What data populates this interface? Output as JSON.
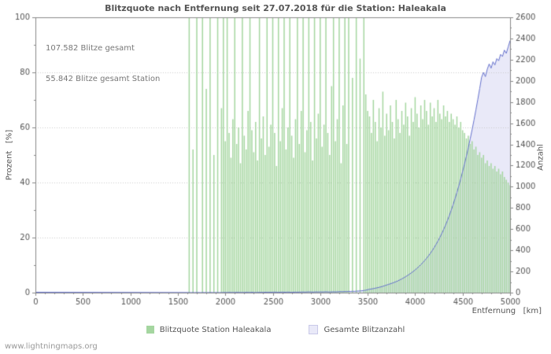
{
  "watermark": "www.lightningmaps.org",
  "chart_data": {
    "type": "mixed",
    "title": "Blitzquote nach Entfernung seit 27.07.2018 für die Station: Haleakala",
    "annotations": [
      "107.582 Blitze gesamt",
      "55.842 Blitze gesamt Station"
    ],
    "grid": "horizontal-dotted",
    "legend_position": "bottom",
    "bins": {
      "start": 1600,
      "step": 20
    },
    "x_axis": {
      "label": "Entfernung   [km]",
      "min": 0,
      "max": 5000,
      "ticks": [
        0,
        500,
        1000,
        1500,
        2000,
        2500,
        3000,
        3500,
        4000,
        4500,
        5000
      ],
      "minor_step": 100
    },
    "y_left": {
      "label": "Prozent   [%]",
      "min": 0,
      "max": 100,
      "ticks": [
        0,
        20,
        40,
        60,
        80,
        100
      ],
      "minor_step": 10
    },
    "y_right": {
      "label": "Anzahl",
      "min": 0,
      "max": 2600,
      "ticks": [
        0,
        200,
        400,
        600,
        800,
        1000,
        1200,
        1400,
        1600,
        1800,
        2000,
        2200,
        2400,
        2600
      ],
      "minor_step": 100
    },
    "series": [
      {
        "name": "Blitzquote Station Haleakala",
        "type": "bar",
        "axis": "left",
        "color": "#a5d6a0",
        "values": [
          0,
          100,
          0,
          52,
          0,
          100,
          0,
          0,
          100,
          0,
          74,
          0,
          100,
          0,
          50,
          0,
          100,
          0,
          67,
          100,
          55,
          100,
          58,
          49,
          63,
          100,
          54,
          60,
          47,
          100,
          57,
          52,
          66,
          100,
          59,
          51,
          62,
          48,
          100,
          56,
          64,
          50,
          100,
          53,
          61,
          100,
          58,
          46,
          100,
          55,
          67,
          100,
          52,
          60,
          100,
          57,
          49,
          63,
          100,
          54,
          66,
          100,
          51,
          59,
          100,
          62,
          48,
          100,
          56,
          65,
          100,
          53,
          61,
          100,
          58,
          50,
          75,
          100,
          55,
          63,
          100,
          47,
          68,
          100,
          54,
          100,
          0,
          78,
          0,
          100,
          0,
          85,
          0,
          100,
          72,
          66,
          64,
          58,
          70,
          62,
          55,
          67,
          60,
          73,
          57,
          65,
          59,
          68,
          62,
          56,
          70,
          63,
          58,
          66,
          61,
          69,
          64,
          57,
          67,
          62,
          71,
          65,
          60,
          68,
          63,
          70,
          66,
          61,
          69,
          64,
          67,
          62,
          70,
          65,
          63,
          68,
          64,
          66,
          62,
          65,
          63,
          61,
          64,
          60,
          62,
          59,
          58,
          56,
          57,
          54,
          55,
          52,
          53,
          50,
          51,
          49,
          50,
          47,
          48,
          46,
          47,
          45,
          46,
          44,
          45,
          43,
          44,
          42,
          41,
          40,
          39
        ]
      },
      {
        "name": "Gesamte Blitzanzahl",
        "type": "area-line",
        "axis": "right",
        "fill": "#e9e9f8",
        "line_color": "#6470cc",
        "values": [
          1,
          1,
          0,
          1,
          0,
          1,
          1,
          0,
          1,
          1,
          0,
          1,
          1,
          1,
          0,
          1,
          1,
          0,
          1,
          1,
          2,
          1,
          2,
          2,
          1,
          2,
          3,
          2,
          2,
          1,
          2,
          3,
          2,
          2,
          3,
          2,
          1,
          2,
          3,
          2,
          3,
          4,
          3,
          4,
          3,
          4,
          5,
          4,
          3,
          4,
          5,
          4,
          4,
          5,
          4,
          3,
          4,
          5,
          4,
          5,
          5,
          6,
          5,
          6,
          7,
          6,
          5,
          6,
          7,
          6,
          7,
          6,
          7,
          8,
          7,
          6,
          7,
          8,
          7,
          8,
          9,
          10,
          9,
          11,
          10,
          12,
          11,
          13,
          12,
          14,
          15,
          16,
          18,
          20,
          23,
          28,
          32,
          35,
          38,
          42,
          46,
          50,
          55,
          60,
          66,
          72,
          78,
          84,
          90,
          97,
          104,
          112,
          121,
          130,
          140,
          151,
          162,
          174,
          187,
          200,
          215,
          230,
          247,
          264,
          283,
          303,
          324,
          347,
          371,
          397,
          425,
          455,
          487,
          521,
          557,
          596,
          637,
          681,
          728,
          778,
          831,
          887,
          946,
          1008,
          1074,
          1143,
          1215,
          1290,
          1369,
          1452,
          1539,
          1630,
          1725,
          1824,
          1927,
          2034,
          2080,
          2040,
          2110,
          2160,
          2120,
          2180,
          2150,
          2210,
          2190,
          2250,
          2230,
          2290,
          2260,
          2320,
          2380
        ]
      }
    ]
  }
}
